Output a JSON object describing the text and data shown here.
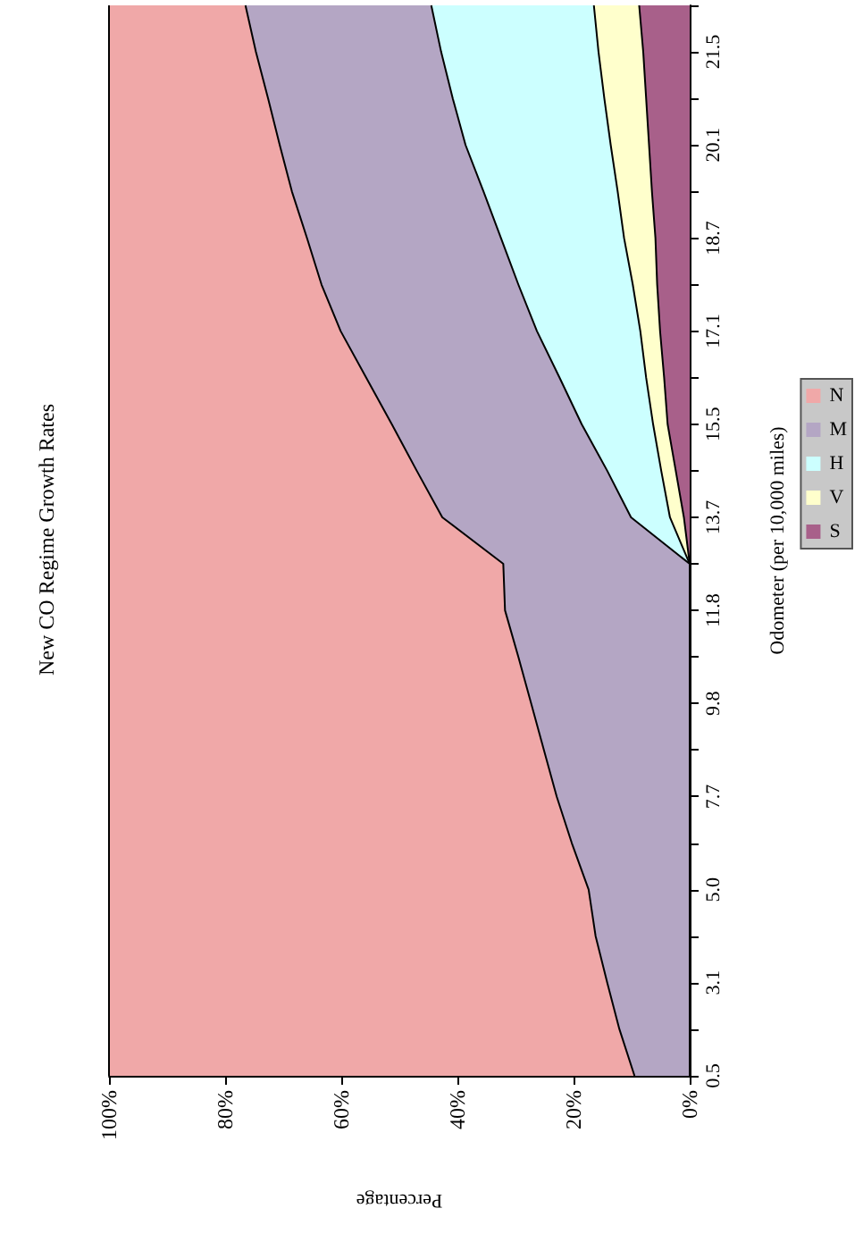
{
  "chart_data": {
    "type": "area",
    "orientation": "horizontal",
    "title": "New CO Regime Growth Rates",
    "ylabel": "Odometer (per 10,000 miles)",
    "xlabel": "Percentage",
    "categories": [
      null,
      "21.5",
      null,
      "20.1",
      null,
      "18.7",
      null,
      "17.1",
      null,
      "15.5",
      null,
      "13.7",
      null,
      "11.8",
      null,
      "9.8",
      null,
      "7.7",
      null,
      "5.0",
      null,
      "3.1",
      null,
      "0.5"
    ],
    "stacked": true,
    "legend": "right",
    "xlim": [
      100,
      0
    ],
    "xticks": [
      {
        "value": 0,
        "label": "0%"
      },
      {
        "value": 20,
        "label": "20%"
      },
      {
        "value": 40,
        "label": "40%"
      },
      {
        "value": 60,
        "label": "60%"
      },
      {
        "value": 80,
        "label": "80%"
      },
      {
        "value": 100,
        "label": "100%"
      }
    ],
    "series": [
      {
        "name": "S",
        "color": "#a8608a",
        "values": [
          8.7,
          8.0,
          7.5,
          7.0,
          6.5,
          5.9,
          5.6,
          5.1,
          4.4,
          3.8,
          2.4,
          1.0,
          0,
          0,
          0,
          0,
          0,
          0,
          0,
          0,
          0,
          0,
          0,
          0
        ]
      },
      {
        "name": "V",
        "color": "#ffffcc",
        "values": [
          7.8,
          7.7,
          7.2,
          6.6,
          5.9,
          5.4,
          4.2,
          3.4,
          3.1,
          2.5,
          2.5,
          2.4,
          0,
          0,
          0,
          0,
          0,
          0,
          0,
          0,
          0,
          0,
          0,
          0
        ]
      },
      {
        "name": "H",
        "color": "#ccffff",
        "values": [
          28.0,
          27.1,
          26.1,
          25.0,
          23.1,
          21.2,
          19.7,
          17.8,
          14.9,
          12.3,
          9.3,
          6.7,
          0,
          0,
          0,
          0,
          0,
          0,
          0,
          0,
          0,
          0,
          0,
          0
        ]
      },
      {
        "name": "M",
        "color": "#b4a6c4",
        "values": [
          32.0,
          31.9,
          31.8,
          32.0,
          33.0,
          33.4,
          33.9,
          33.8,
          33.3,
          32.7,
          32.8,
          32.5,
          32.1,
          31.8,
          29.5,
          27.3,
          25.1,
          22.9,
          20.3,
          17.4,
          16.2,
          14.2,
          12.1,
          9.5
        ]
      },
      {
        "name": "N",
        "color": "#f0a8a8",
        "values": [
          23.5,
          25.3,
          27.4,
          29.4,
          31.5,
          34.1,
          36.6,
          39.9,
          44.3,
          48.7,
          53.0,
          57.4,
          67.9,
          68.2,
          70.5,
          72.7,
          74.9,
          77.1,
          79.7,
          82.6,
          83.8,
          85.8,
          87.9,
          90.5
        ]
      }
    ]
  }
}
